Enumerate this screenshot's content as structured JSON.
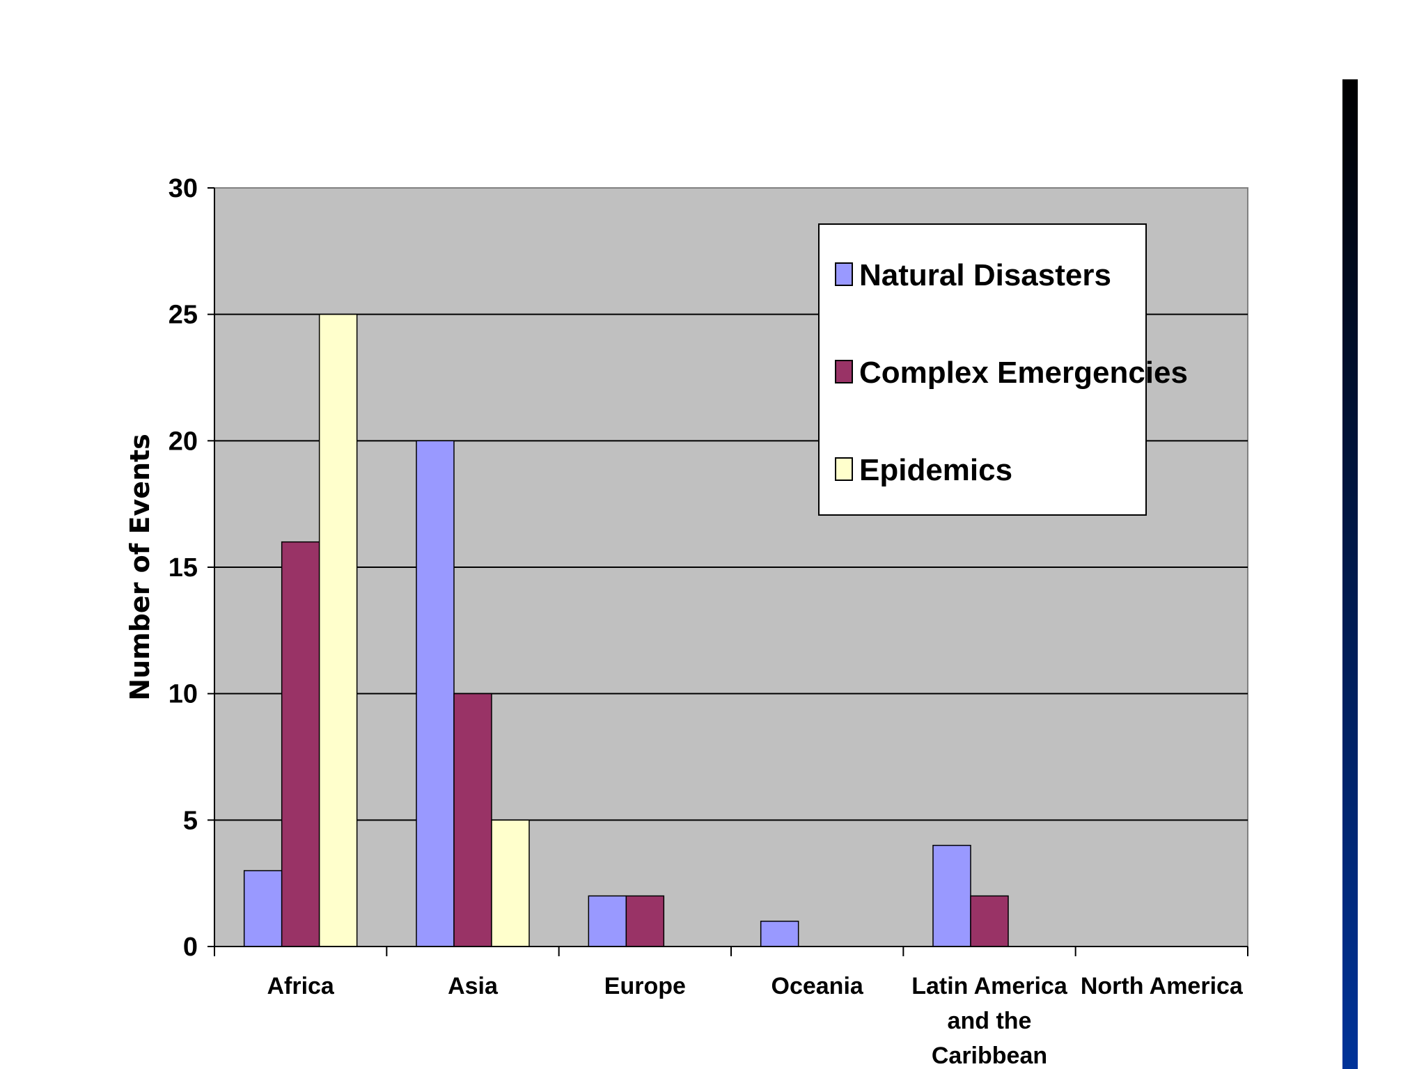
{
  "chart_data": {
    "type": "bar",
    "title": "",
    "xlabel": "",
    "ylabel": "Number of Events",
    "ylim": [
      0,
      30
    ],
    "yticks": [
      0,
      5,
      10,
      15,
      20,
      25,
      30
    ],
    "grid": true,
    "legend_position": "top-right",
    "plot_background": "#c0c0c0",
    "categories": [
      [
        "Africa"
      ],
      [
        "Asia"
      ],
      [
        "Europe"
      ],
      [
        "Oceania"
      ],
      [
        "Latin America",
        "and the",
        "Caribbean"
      ],
      [
        "North America"
      ]
    ],
    "series": [
      {
        "name": "Natural Disasters",
        "color": "#9999ff",
        "values": [
          3,
          20,
          2,
          1,
          4,
          0
        ]
      },
      {
        "name": "Complex Emergencies",
        "color": "#993366",
        "values": [
          16,
          10,
          2,
          0,
          2,
          0
        ]
      },
      {
        "name": "Epidemics",
        "color": "#ffffcc",
        "values": [
          25,
          5,
          0,
          0,
          0,
          0
        ]
      }
    ]
  },
  "decor": {
    "side_bar_gradient": [
      "#000000",
      "#003399"
    ]
  }
}
